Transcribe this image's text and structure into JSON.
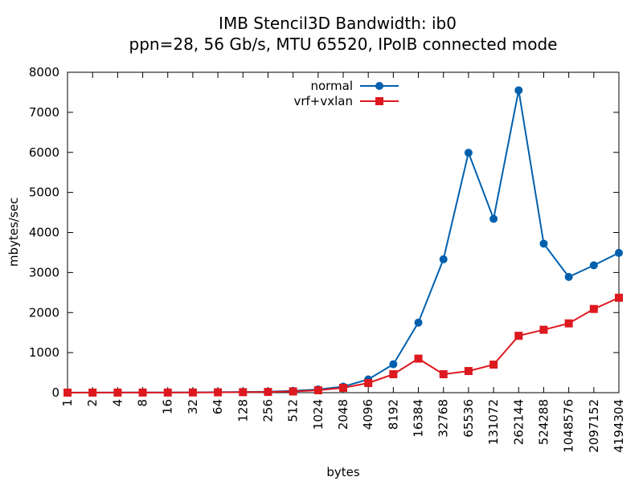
{
  "chart_data": {
    "type": "line",
    "title_line1": "IMB Stencil3D Bandwidth: ib0",
    "title_line2": "ppn=28, 56 Gb/s, MTU 65520, IPoIB connected mode",
    "xlabel": "bytes",
    "ylabel": "mbytes/sec",
    "ylim": [
      0,
      8000
    ],
    "yticks": [
      0,
      1000,
      2000,
      3000,
      4000,
      5000,
      6000,
      7000,
      8000
    ],
    "categories": [
      "1",
      "2",
      "4",
      "8",
      "16",
      "32",
      "64",
      "128",
      "256",
      "512",
      "1024",
      "2048",
      "4096",
      "8192",
      "16384",
      "32768",
      "65536",
      "131072",
      "262144",
      "524288",
      "1048576",
      "2097152",
      "4194304"
    ],
    "grid": false,
    "legend_position": "top-center",
    "series": [
      {
        "name": "normal",
        "color": "#0060ad",
        "marker": "circle",
        "values": [
          2,
          3,
          4,
          5,
          6,
          8,
          12,
          18,
          25,
          45,
          80,
          150,
          330,
          710,
          1750,
          3330,
          5990,
          4340,
          7550,
          3720,
          2890,
          3180,
          3490
        ]
      },
      {
        "name": "vrf+vxlan",
        "color": "#dd181f",
        "marker": "square",
        "values": [
          1,
          2,
          2,
          3,
          3,
          5,
          8,
          12,
          18,
          30,
          60,
          120,
          240,
          460,
          850,
          460,
          540,
          700,
          1420,
          1570,
          1730,
          2090,
          2370
        ]
      }
    ]
  }
}
